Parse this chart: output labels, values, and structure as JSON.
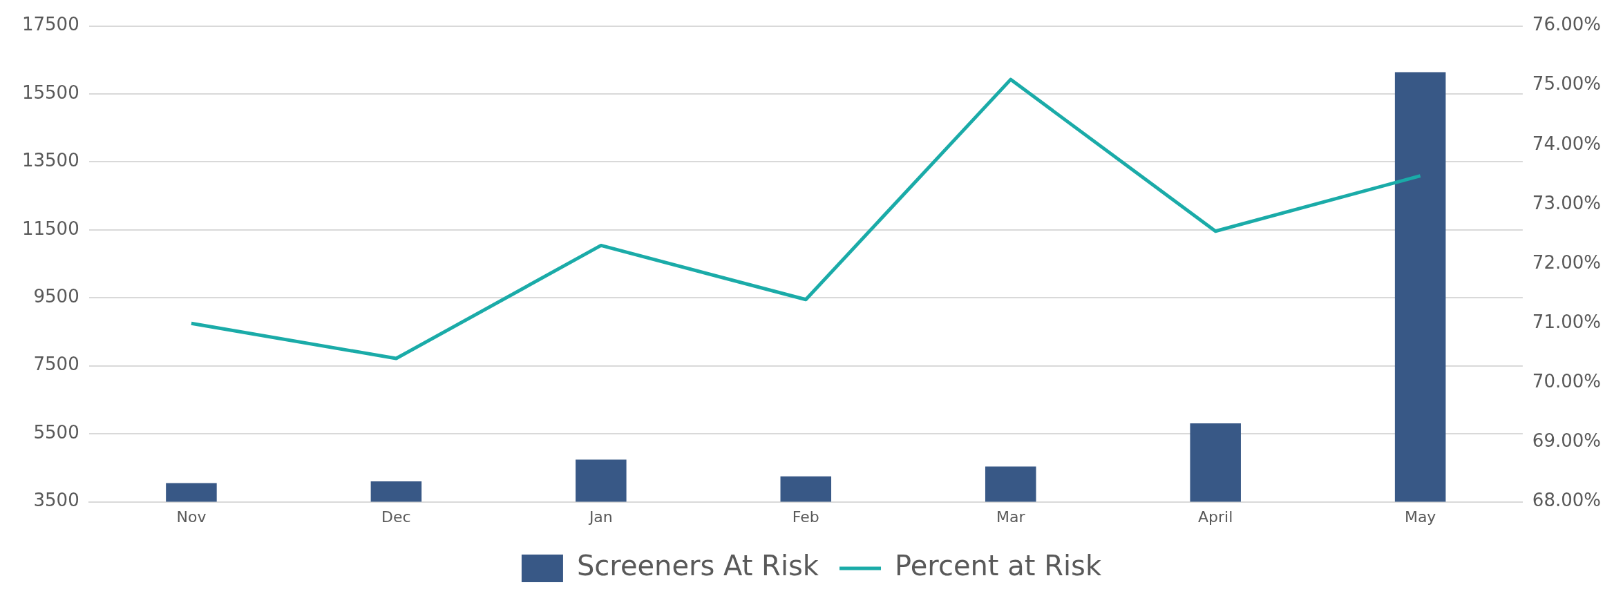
{
  "chart_data": {
    "type": "bar",
    "categories": [
      "Nov",
      "Dec",
      "Jan",
      "Feb",
      "Mar",
      "April",
      "May"
    ],
    "series": [
      {
        "name": "Screeners At Risk",
        "color": "#385886",
        "values": [
          4050,
          4100,
          4740,
          4250,
          4540,
          5810,
          16140
        ]
      },
      {
        "name": "Percent at Risk",
        "type": "line",
        "axis": "y2",
        "color": "#1aaba8",
        "values": [
          71.0,
          70.41,
          72.31,
          71.4,
          75.1,
          72.55,
          73.48
        ],
        "marker": "none"
      }
    ],
    "ylim": [
      3500,
      17500
    ],
    "yticks": [
      3500,
      5500,
      7500,
      9500,
      11500,
      13500,
      15500,
      17500
    ],
    "y2lim": [
      68,
      76
    ],
    "y2ticks": [
      {
        "value": 68,
        "label": "68.00%"
      },
      {
        "value": 69,
        "label": "69.00%"
      },
      {
        "value": 70,
        "label": "70.00%"
      },
      {
        "value": 71,
        "label": "71.00%"
      },
      {
        "value": 72,
        "label": "72.00%"
      },
      {
        "value": 73,
        "label": "73.00%"
      },
      {
        "value": 74,
        "label": "74.00%"
      },
      {
        "value": 75,
        "label": "75.00%"
      },
      {
        "value": 76,
        "label": "76.00%"
      }
    ],
    "grid": "y",
    "legend": "bottom"
  }
}
